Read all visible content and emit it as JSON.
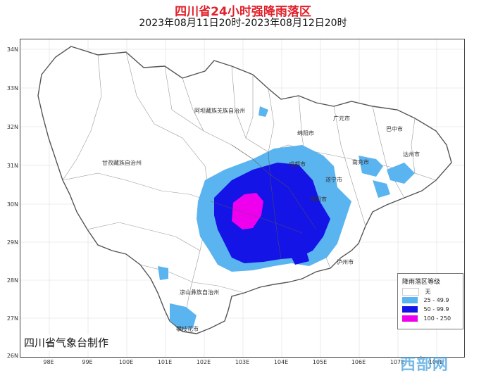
{
  "title": "四川省24小时强降雨落区",
  "subtitle": "2023年08月11日20时-2023年08月12日20时",
  "maker": "四川省气象台制作",
  "watermark": "西部网",
  "axes": {
    "lat_labels": [
      "34N",
      "33N",
      "32N",
      "31N",
      "30N",
      "29N",
      "28N",
      "27N",
      "26N"
    ],
    "lon_labels": [
      "98E",
      "99E",
      "100E",
      "101E",
      "102E",
      "103E",
      "104E",
      "105E",
      "106E",
      "107E",
      "108E"
    ]
  },
  "places": {
    "aba": "阿坝藏族羌族自治州",
    "ganzi": "甘孜藏族自治州",
    "liangshan": "凉山彝族自治州",
    "guangyuan": "广元市",
    "bazhong": "巴中市",
    "mianyang": "绵阳市",
    "dazhou": "达州市",
    "nanchong": "南充市",
    "chengdu": "成都市",
    "suining": "遂宁市",
    "ziyang": "资阳市",
    "luzhou": "泸州市",
    "panzhihua": "攀枝花市"
  },
  "legend": {
    "title": "降雨落区等级",
    "items": [
      {
        "label": "无",
        "color": "#ffffff"
      },
      {
        "label": "25 - 49.9",
        "color": "#5ab4f0"
      },
      {
        "label": "50 - 99.9",
        "color": "#1414e6"
      },
      {
        "label": "100 - 250",
        "color": "#ee00ee"
      }
    ]
  }
}
